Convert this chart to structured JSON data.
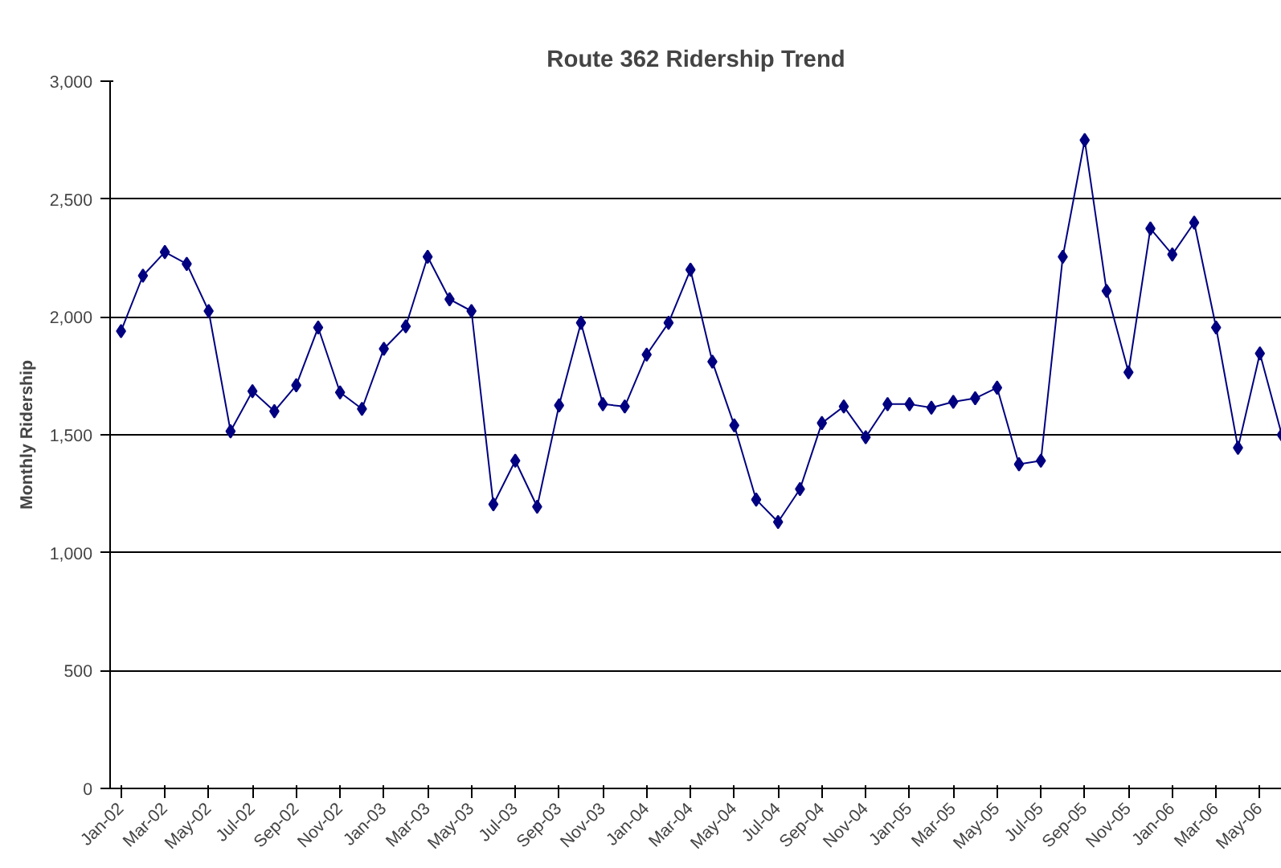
{
  "chart_data": {
    "type": "line",
    "title": "Route 362 Ridership Trend",
    "ylabel": "Monthly Ridership",
    "categories": [
      "Jan-02",
      null,
      "Mar-02",
      null,
      "May-02",
      null,
      "Jul-02",
      null,
      "Sep-02",
      null,
      "Nov-02",
      null,
      "Jan-03",
      null,
      "Mar-03",
      null,
      "May-03",
      null,
      "Jul-03",
      null,
      "Sep-03",
      null,
      "Nov-03",
      null,
      "Jan-04",
      null,
      "Mar-04",
      null,
      "May-04",
      null,
      "Jul-04",
      null,
      "Sep-04",
      null,
      "Nov-04",
      null,
      "Jan-05",
      null,
      "Mar-05",
      null,
      "May-05",
      null,
      "Jul-05",
      null,
      "Sep-05",
      null,
      "Nov-05",
      null,
      "Jan-06",
      null,
      "Mar-06",
      null,
      "May-06",
      null
    ],
    "series": [
      {
        "color": "#000080",
        "values": [
          1940,
          2175,
          2275,
          2225,
          2025,
          1515,
          1685,
          1600,
          1710,
          1955,
          1680,
          1610,
          1865,
          1960,
          2255,
          2075,
          2025,
          1205,
          1390,
          1195,
          1625,
          1975,
          1630,
          1620,
          1840,
          1975,
          2200,
          1810,
          1540,
          1225,
          1130,
          1270,
          1550,
          1620,
          1490,
          1630,
          1630,
          1615,
          1640,
          1655,
          1700,
          1375,
          1390,
          2255,
          2750,
          2110,
          1765,
          2375,
          2265,
          2400,
          1955,
          1445,
          1845,
          1500
        ]
      }
    ],
    "ylim": [
      0,
      3000
    ],
    "yticks": [
      0,
      {
        "value": 500,
        "label": "500"
      },
      {
        "value": 1000,
        "label": "1,000"
      },
      {
        "value": 1500,
        "label": "1,500"
      },
      {
        "value": 2000,
        "label": "2,000"
      },
      {
        "value": 2500,
        "label": "2,500"
      },
      {
        "value": 3000,
        "label": "3,000"
      }
    ],
    "grid": "y",
    "marker": "diamond",
    "line_style": "solid"
  }
}
